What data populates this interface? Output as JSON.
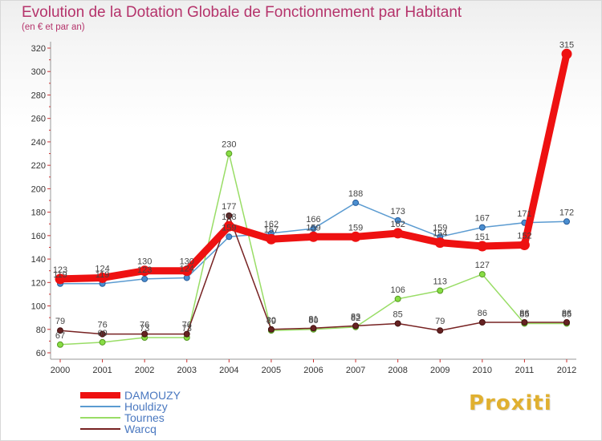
{
  "chart_data": {
    "type": "line",
    "title": "Evolution de la Dotation Globale de Fonctionnement par Habitant",
    "subtitle": "(en € et par an)",
    "xlabel": "",
    "ylabel": "",
    "categories": [
      "2000",
      "2001",
      "2002",
      "2003",
      "2004",
      "2005",
      "2006",
      "2007",
      "2008",
      "2009",
      "2010",
      "2011",
      "2012"
    ],
    "ylim": [
      60,
      320
    ],
    "yticks": [
      60,
      80,
      100,
      120,
      140,
      160,
      180,
      200,
      220,
      240,
      260,
      280,
      300,
      320
    ],
    "grid": false,
    "legend_position": "bottom-left",
    "series": [
      {
        "name": "DAMOUZY",
        "color": "#ee1111",
        "values": [
          123,
          124,
          130,
          130,
          168,
          157,
          159,
          159,
          162,
          154,
          151,
          152,
          315
        ]
      },
      {
        "name": "Houldizy",
        "color": "#5b9bd1",
        "values": [
          119,
          119,
          123,
          124,
          159,
          162,
          166,
          188,
          173,
          159,
          167,
          171,
          172
        ]
      },
      {
        "name": "Tournes",
        "color": "#99dd66",
        "values": [
          67,
          69,
          73,
          73,
          230,
          79,
          80,
          82,
          106,
          113,
          127,
          85,
          85
        ]
      },
      {
        "name": "Warcq",
        "color": "#772222",
        "values": [
          79,
          76,
          76,
          76,
          177,
          80,
          81,
          83,
          85,
          79,
          86,
          86,
          86
        ]
      }
    ]
  },
  "brand": {
    "name": "Proxiti"
  }
}
